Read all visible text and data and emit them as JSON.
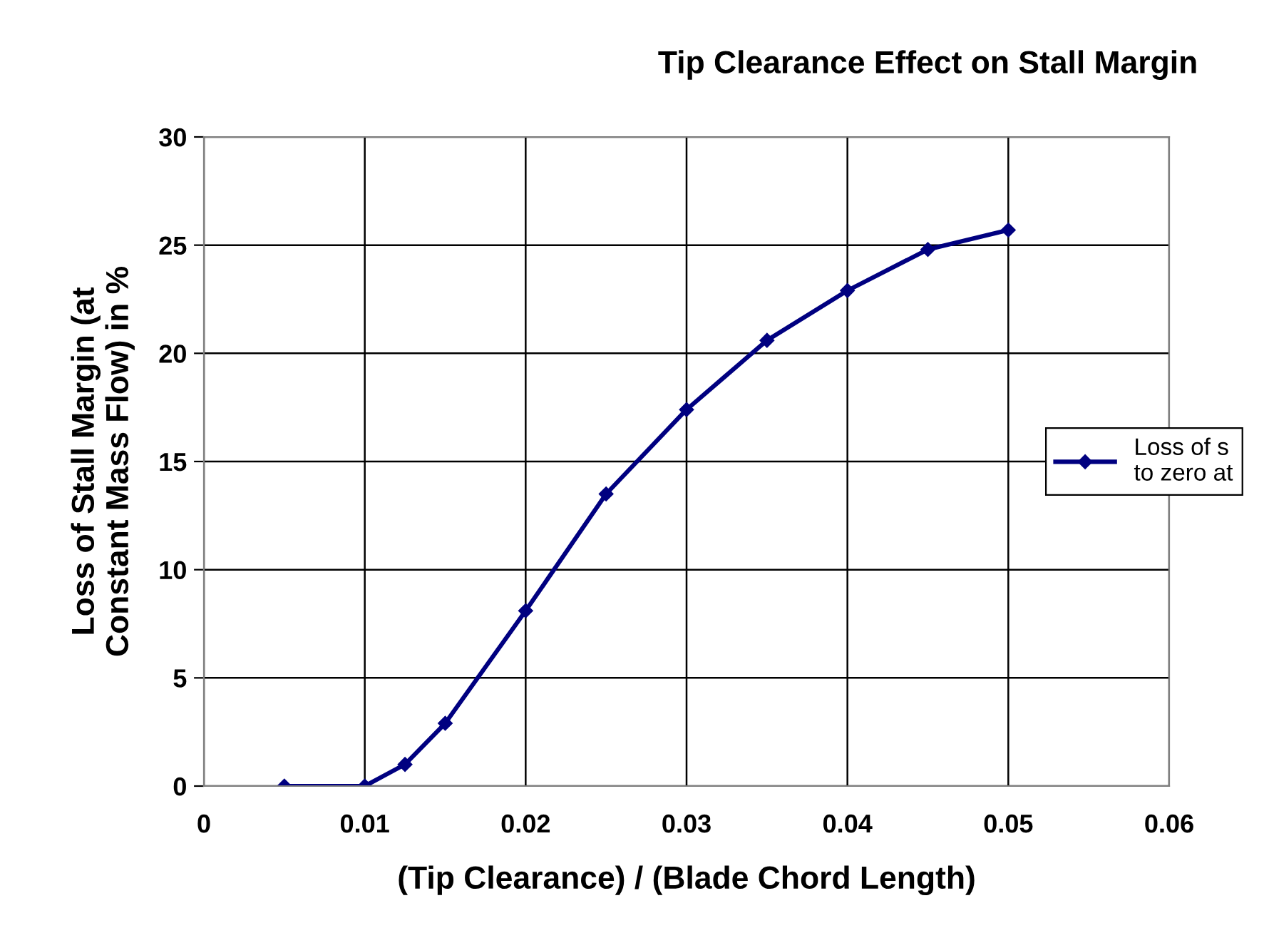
{
  "chart_data": {
    "type": "line",
    "title": "Tip Clearance Effect on Stall Margin",
    "xlabel": "(Tip Clearance) / (Blade Chord Length)",
    "ylabel": "Loss of Stall Margin (at\nConstant Mass Flow) in %",
    "series": [
      {
        "name": "Loss of s\nto zero at",
        "color": "#000080",
        "x": [
          0.005,
          0.01,
          0.0125,
          0.015,
          0.02,
          0.025,
          0.03,
          0.035,
          0.04,
          0.045,
          0.05
        ],
        "values": [
          0,
          0,
          1.0,
          2.9,
          8.1,
          13.5,
          17.4,
          20.6,
          22.9,
          24.8,
          25.7
        ]
      }
    ],
    "xlim": [
      0,
      0.06
    ],
    "xticks": [
      0,
      0.01,
      0.02,
      0.03,
      0.04,
      0.05,
      0.06
    ],
    "ylim": [
      0,
      30
    ],
    "yticks": [
      0,
      5,
      10,
      15,
      20,
      25,
      30
    ],
    "grid": true,
    "legend": "right",
    "marker": "diamond",
    "line_style": "solid"
  }
}
